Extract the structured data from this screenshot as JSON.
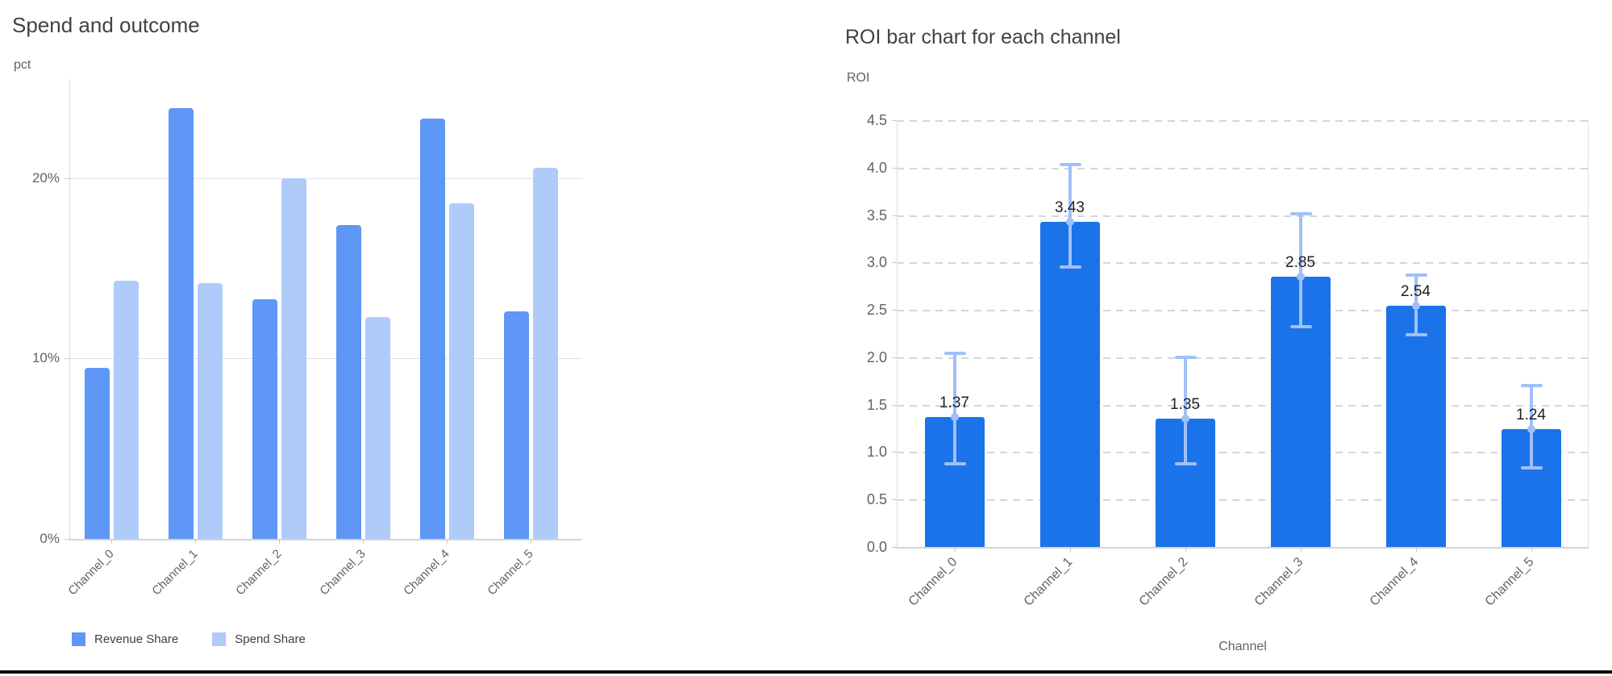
{
  "page": {
    "background_color": "#ffffff",
    "bottom_rule_color": "#0b0b0c"
  },
  "chart_data": [
    {
      "type": "bar",
      "title": "Spend and outcome",
      "xlabel": "",
      "ylabel": "pct",
      "categories": [
        "Channel_0",
        "Channel_1",
        "Channel_2",
        "Channel_3",
        "Channel_4",
        "Channel_5"
      ],
      "series": [
        {
          "name": "Revenue Share",
          "color": "#5e97f6",
          "values": [
            9.5,
            23.9,
            13.3,
            17.4,
            23.3,
            12.6
          ]
        },
        {
          "name": "Spend Share",
          "color": "#aecbfa",
          "values": [
            14.3,
            14.2,
            20.0,
            12.3,
            18.6,
            20.6
          ]
        }
      ],
      "ylim": [
        0,
        25.5
      ],
      "yticks": [
        {
          "value": 0,
          "label": "0%"
        },
        {
          "value": 10,
          "label": "10%"
        },
        {
          "value": 20,
          "label": "20%"
        }
      ],
      "grid": "horizontal-solid",
      "legend_position": "bottom-left",
      "values_unit": "percent"
    },
    {
      "type": "bar",
      "title": "ROI bar chart for each channel",
      "xlabel": "Channel",
      "ylabel": "ROI",
      "categories": [
        "Channel_0",
        "Channel_1",
        "Channel_2",
        "Channel_3",
        "Channel_4",
        "Channel_5"
      ],
      "values": [
        1.37,
        3.43,
        1.35,
        2.85,
        2.54,
        1.24
      ],
      "value_labels": [
        "1.37",
        "3.43",
        "1.35",
        "2.85",
        "2.54",
        "1.24"
      ],
      "error_low": [
        0.88,
        2.95,
        0.88,
        2.32,
        2.24,
        0.83
      ],
      "error_high": [
        2.04,
        4.03,
        2.0,
        3.51,
        2.87,
        1.7
      ],
      "bar_color": "#1a73e8",
      "error_color": "#a0c0f9",
      "ylim": [
        0,
        4.5
      ],
      "yticks": [
        {
          "value": 0.0,
          "label": "0.0"
        },
        {
          "value": 0.5,
          "label": "0.5"
        },
        {
          "value": 1.0,
          "label": "1.0"
        },
        {
          "value": 1.5,
          "label": "1.5"
        },
        {
          "value": 2.0,
          "label": "2.0"
        },
        {
          "value": 2.5,
          "label": "2.5"
        },
        {
          "value": 3.0,
          "label": "3.0"
        },
        {
          "value": 3.5,
          "label": "3.5"
        },
        {
          "value": 4.0,
          "label": "4.0"
        },
        {
          "value": 4.5,
          "label": "4.5"
        },
        {
          "value": 4.5,
          "label": "4.5"
        }
      ],
      "grid": "horizontal-dashed",
      "legend_position": "none"
    }
  ]
}
